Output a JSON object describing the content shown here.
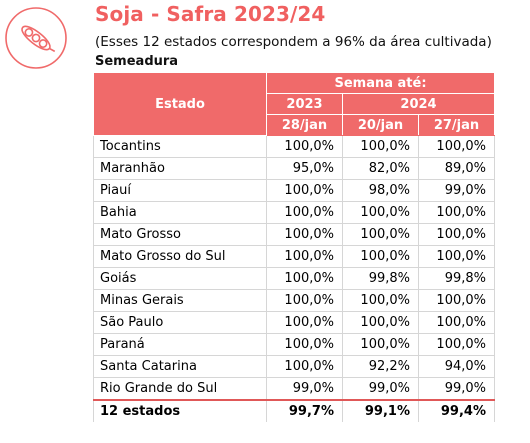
{
  "title": "Soja - Safra 2023/24",
  "subtitle": "(Esses 12 estados correspondem a 96% da área cultivada)",
  "section": "Semeadura",
  "icon": "soybean-pod-icon",
  "accent_color": "#f06a6a",
  "table": {
    "col_estado": "Estado",
    "col_semana": "Semana até:",
    "year_2023": "2023",
    "year_2024": "2024",
    "date_1": "28/jan",
    "date_2": "20/jan",
    "date_3": "27/jan",
    "rows": [
      {
        "estado": "Tocantins",
        "v1": "100,0%",
        "v2": "100,0%",
        "v3": "100,0%"
      },
      {
        "estado": "Maranhão",
        "v1": "95,0%",
        "v2": "82,0%",
        "v3": "89,0%"
      },
      {
        "estado": "Piauí",
        "v1": "100,0%",
        "v2": "98,0%",
        "v3": "99,0%"
      },
      {
        "estado": "Bahia",
        "v1": "100,0%",
        "v2": "100,0%",
        "v3": "100,0%"
      },
      {
        "estado": "Mato Grosso",
        "v1": "100,0%",
        "v2": "100,0%",
        "v3": "100,0%"
      },
      {
        "estado": "Mato Grosso do Sul",
        "v1": "100,0%",
        "v2": "100,0%",
        "v3": "100,0%"
      },
      {
        "estado": "Goiás",
        "v1": "100,0%",
        "v2": "99,8%",
        "v3": "99,8%"
      },
      {
        "estado": "Minas Gerais",
        "v1": "100,0%",
        "v2": "100,0%",
        "v3": "100,0%"
      },
      {
        "estado": "São Paulo",
        "v1": "100,0%",
        "v2": "100,0%",
        "v3": "100,0%"
      },
      {
        "estado": "Paraná",
        "v1": "100,0%",
        "v2": "100,0%",
        "v3": "100,0%"
      },
      {
        "estado": "Santa Catarina",
        "v1": "100,0%",
        "v2": "92,2%",
        "v3": "94,0%"
      },
      {
        "estado": "Rio Grande do Sul",
        "v1": "99,0%",
        "v2": "99,0%",
        "v3": "99,0%"
      }
    ],
    "total": {
      "estado": "12 estados",
      "v1": "99,7%",
      "v2": "99,1%",
      "v3": "99,4%"
    }
  }
}
